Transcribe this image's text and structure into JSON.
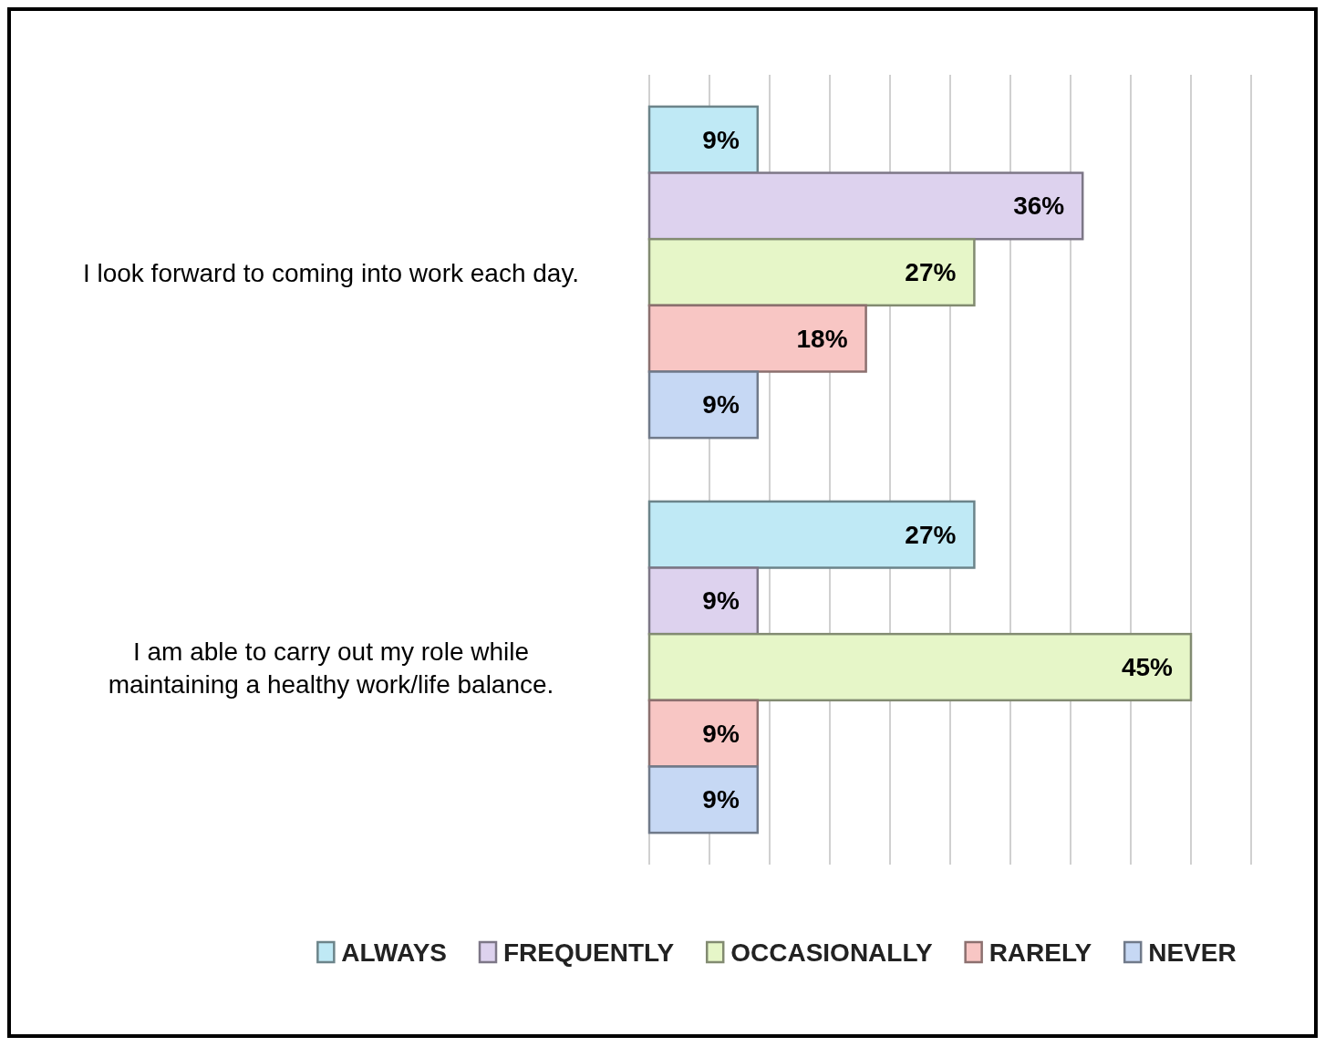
{
  "chart_data": {
    "type": "bar",
    "orientation": "horizontal",
    "categories": [
      "I look forward to coming into work each day.",
      "I am able to carry out my role while maintaining a healthy work/life balance."
    ],
    "series": [
      {
        "name": "ALWAYS",
        "color": "#bfe9f5",
        "values": [
          9,
          27
        ],
        "value_labels": [
          "9%",
          "27%"
        ]
      },
      {
        "name": "FREQUENTLY",
        "color": "#ddd2ee",
        "values": [
          36,
          9
        ],
        "value_labels": [
          "36%",
          "9%"
        ]
      },
      {
        "name": "OCCASIONALLY",
        "color": "#e6f6c8",
        "values": [
          27,
          45
        ],
        "value_labels": [
          "27%",
          "45%"
        ]
      },
      {
        "name": "RARELY",
        "color": "#f8c6c4",
        "values": [
          18,
          9
        ],
        "value_labels": [
          "18%",
          "9%"
        ]
      },
      {
        "name": "NEVER",
        "color": "#c6d8f4",
        "values": [
          9,
          9
        ],
        "value_labels": [
          "9%",
          "9%"
        ]
      }
    ],
    "xlim": [
      0,
      50
    ],
    "xticks": [
      {
        "value": 0,
        "label": null
      },
      {
        "value": 5,
        "label": null
      },
      {
        "value": 10,
        "label": null
      },
      {
        "value": 15,
        "label": null
      },
      {
        "value": 20,
        "label": null
      },
      {
        "value": 25,
        "label": null
      },
      {
        "value": 30,
        "label": null
      },
      {
        "value": 35,
        "label": null
      },
      {
        "value": 40,
        "label": null
      },
      {
        "value": 45,
        "label": null
      },
      {
        "value": 50,
        "label": null
      }
    ],
    "grid": "x",
    "legend": "bottom",
    "tick_labels": "y"
  }
}
